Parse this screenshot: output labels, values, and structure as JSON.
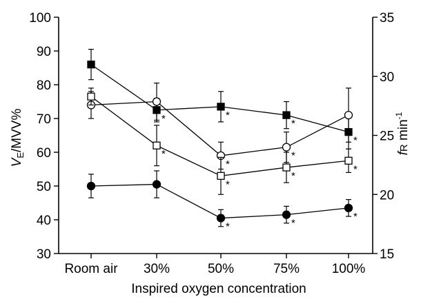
{
  "chart_data": {
    "type": "line",
    "xlabel": "Inspired oxygen concentration",
    "ylabel_left_italic": "V",
    "ylabel_left_sub": "E",
    "ylabel_left_rest": "/MVV%",
    "ylabel_right_italic": "f",
    "ylabel_right_sub": "R",
    "ylabel_right_unit": " min",
    "ylabel_right_sup": "-1",
    "categories": [
      "Room air",
      "30%",
      "50%",
      "75%",
      "100%"
    ],
    "left_axis": {
      "min": 30,
      "max": 100,
      "ticks": [
        30,
        40,
        50,
        60,
        70,
        80,
        90,
        100
      ]
    },
    "right_axis": {
      "min": 15,
      "max": 35,
      "ticks": [
        15,
        20,
        25,
        30,
        35
      ]
    },
    "significance_marker": "*",
    "series": [
      {
        "marker": "filled-square",
        "axis": "left",
        "values": [
          86,
          72.5,
          73.5,
          71,
          66
        ],
        "errors": [
          4.5,
          3.5,
          4.5,
          4,
          5
        ],
        "significant": [
          false,
          true,
          true,
          true,
          true
        ]
      },
      {
        "marker": "open-circle",
        "axis": "left",
        "values": [
          74,
          75,
          59,
          61.5,
          71
        ],
        "errors": [
          4,
          5.5,
          4,
          4.5,
          8
        ],
        "significant": [
          false,
          false,
          true,
          true,
          false
        ]
      },
      {
        "marker": "open-square",
        "axis": "left",
        "values": [
          76.5,
          62,
          53,
          55.5,
          57.5
        ],
        "errors": [
          2.5,
          6,
          5.5,
          4.5,
          3.5
        ],
        "significant": [
          false,
          true,
          true,
          true,
          true
        ]
      },
      {
        "marker": "filled-circle",
        "axis": "left",
        "values": [
          50,
          50.5,
          40.5,
          41.5,
          43.5
        ],
        "errors": [
          3.5,
          4,
          2.5,
          2.5,
          2.5
        ],
        "significant": [
          false,
          false,
          true,
          true,
          true
        ]
      }
    ]
  }
}
